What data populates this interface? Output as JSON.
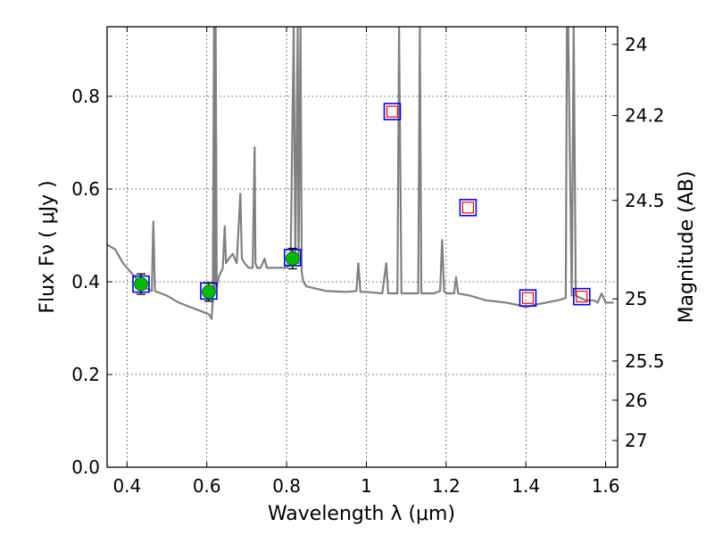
{
  "chart_data": {
    "type": "scatter",
    "title": "",
    "xlabel": "Wavelength  λ (μm)",
    "ylabel": "Flux  Fν ( μJy )",
    "ylabel_right": "Magnitude (AB)",
    "xlim": [
      0.35,
      1.63
    ],
    "ylim": [
      0.0,
      0.95
    ],
    "grid": true,
    "x_ticks": [
      0.4,
      0.6,
      0.8,
      1.0,
      1.2,
      1.4,
      1.6
    ],
    "x_tick_labels": [
      "0.4",
      "0.6",
      "0.8",
      "1",
      "1.2",
      "1.4",
      "1.6"
    ],
    "y_ticks": [
      0.0,
      0.2,
      0.4,
      0.6,
      0.8
    ],
    "y_tick_labels": [
      "0.0",
      "0.2",
      "0.4",
      "0.6",
      "0.8"
    ],
    "right_ticks": [
      {
        "label": "24",
        "mag": 24.0
      },
      {
        "label": "24.2",
        "mag": 24.2
      },
      {
        "label": "24.5",
        "mag": 24.5
      },
      {
        "label": "25",
        "mag": 25.0
      },
      {
        "label": "25.5",
        "mag": 25.5
      },
      {
        "label": "26",
        "mag": 26.0
      },
      {
        "label": "27",
        "mag": 27.0
      }
    ],
    "series": [
      {
        "kind": "spectrum",
        "color": "#808080",
        "x": [
          0.35,
          0.37,
          0.39,
          0.41,
          0.43,
          0.45,
          0.462,
          0.466,
          0.47,
          0.5,
          0.53,
          0.56,
          0.59,
          0.605,
          0.612,
          0.615,
          0.618,
          0.62,
          0.622,
          0.625,
          0.63,
          0.64,
          0.645,
          0.648,
          0.655,
          0.665,
          0.675,
          0.684,
          0.688,
          0.695,
          0.705,
          0.715,
          0.72,
          0.722,
          0.726,
          0.735,
          0.745,
          0.75,
          0.76,
          0.78,
          0.8,
          0.81,
          0.818,
          0.822,
          0.828,
          0.83,
          0.835,
          0.838,
          0.842,
          0.85,
          0.9,
          0.95,
          0.975,
          0.98,
          0.985,
          1.0,
          1.04,
          1.05,
          1.055,
          1.07,
          1.078,
          1.082,
          1.088,
          1.1,
          1.13,
          1.134,
          1.138,
          1.17,
          1.185,
          1.19,
          1.195,
          1.2,
          1.22,
          1.225,
          1.23,
          1.26,
          1.3,
          1.35,
          1.38,
          1.4,
          1.42,
          1.45,
          1.48,
          1.5,
          1.503,
          1.506,
          1.515,
          1.52,
          1.525,
          1.55,
          1.57,
          1.58,
          1.59,
          1.6,
          1.62
        ],
        "y": [
          0.48,
          0.47,
          0.44,
          0.42,
          0.4,
          0.385,
          0.38,
          0.53,
          0.38,
          0.37,
          0.355,
          0.345,
          0.335,
          0.33,
          0.32,
          0.36,
          0.95,
          0.38,
          0.95,
          0.39,
          0.41,
          0.43,
          0.52,
          0.44,
          0.45,
          0.46,
          0.44,
          0.59,
          0.45,
          0.44,
          0.43,
          0.43,
          0.69,
          0.44,
          0.43,
          0.43,
          0.45,
          0.43,
          0.43,
          0.43,
          0.43,
          0.44,
          0.95,
          0.45,
          0.95,
          0.44,
          0.95,
          0.42,
          0.4,
          0.39,
          0.38,
          0.378,
          0.38,
          0.44,
          0.378,
          0.378,
          0.375,
          0.44,
          0.375,
          0.375,
          0.375,
          0.95,
          0.375,
          0.375,
          0.375,
          0.95,
          0.375,
          0.375,
          0.38,
          0.49,
          0.38,
          0.375,
          0.375,
          0.41,
          0.375,
          0.37,
          0.36,
          0.355,
          0.35,
          0.345,
          0.35,
          0.355,
          0.36,
          0.365,
          0.95,
          0.95,
          0.37,
          0.95,
          0.37,
          0.36,
          0.36,
          0.355,
          0.375,
          0.355,
          0.355
        ]
      },
      {
        "kind": "model_photometry",
        "marker": "open-square",
        "edge_color": "#0000ff",
        "x": [
          0.435,
          0.605,
          0.815,
          1.065,
          1.255,
          1.405,
          1.54
        ],
        "y": [
          0.395,
          0.38,
          0.452,
          0.767,
          0.56,
          0.365,
          0.368
        ]
      },
      {
        "kind": "upper_limit_photometry",
        "marker": "open-square",
        "edge_color": "#ff0000",
        "x": [
          1.065,
          1.255,
          1.405,
          1.54
        ],
        "y": [
          0.767,
          0.56,
          0.365,
          0.368
        ]
      },
      {
        "kind": "observed_photometry",
        "marker": "filled-circle",
        "color": "#00bb00",
        "x": [
          0.435,
          0.605,
          0.815
        ],
        "y": [
          0.395,
          0.378,
          0.45
        ],
        "yerr": [
          0.022,
          0.02,
          0.022
        ]
      }
    ]
  }
}
